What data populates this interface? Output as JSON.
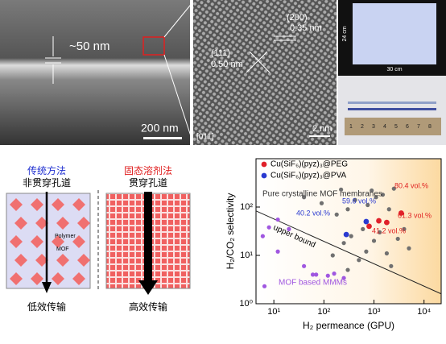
{
  "sem": {
    "thickness": "~50 nm",
    "scale": "200 nm"
  },
  "tem": {
    "plane_a": "(200)",
    "spacing_a": "0.35 nm",
    "plane_b": "(111)",
    "spacing_b": "0.50 nm",
    "zone": "[011]",
    "scale": "2 nm"
  },
  "photo": {
    "height": "24 cm",
    "width": "30 cm",
    "ruler": [
      "1",
      "2",
      "3",
      "4",
      "5",
      "6",
      "7",
      "8"
    ]
  },
  "diagram": {
    "left": {
      "title": "传统方法",
      "subtitle": "非贯穿孔道",
      "polymer": "Polymer",
      "mof": "MOF",
      "result": "低效传输"
    },
    "right": {
      "title": "固态溶剂法",
      "subtitle": "贯穿孔道",
      "result": "高效传输"
    }
  },
  "chart_data": {
    "type": "scatter",
    "x_label": "H₂ permeance (GPU)",
    "y_label": "H₂/CO₂ selectivity",
    "log_x": true,
    "log_y": true,
    "xlim": [
      4.4,
      22000
    ],
    "ylim": [
      1,
      1000
    ],
    "xticks": [
      {
        "value": 10,
        "label": "10¹"
      },
      {
        "value": 100,
        "label": "10²"
      },
      {
        "value": 1000,
        "label": "10³"
      },
      {
        "value": 10000,
        "label": "10⁴"
      }
    ],
    "yticks": [
      {
        "value": 1,
        "label": "10⁰"
      },
      {
        "value": 10,
        "label": "10¹"
      },
      {
        "value": 100,
        "label": "10²"
      }
    ],
    "legend": "upper left",
    "series": [
      {
        "name": "Cu(SiF₆)(pyz)₃@PEG",
        "color": "#e0202a",
        "x": [
          800,
          1250,
          1800,
          3500
        ],
        "values": [
          40,
          52,
          48,
          75
        ]
      },
      {
        "name": "Cu(SiF₆)(pyz)₃@PVA",
        "color": "#2a3ad0",
        "x": [
          280,
          700
        ],
        "values": [
          27,
          50
        ]
      }
    ],
    "reference": [
      {
        "name": "Pure crystalline MOF membranes",
        "color": "#707070",
        "x": [
          40,
          90,
          180,
          220,
          300,
          350,
          420,
          600,
          750,
          900,
          1100,
          1300,
          1500,
          2000,
          2500,
          3000,
          4000,
          5000,
          300,
          500,
          700,
          1000,
          150,
          250,
          2200,
          1800
        ],
        "values": [
          160,
          120,
          70,
          230,
          90,
          25,
          140,
          35,
          110,
          220,
          160,
          30,
          180,
          90,
          240,
          22,
          35,
          14,
          5,
          8,
          12,
          20,
          10,
          18,
          6,
          11
        ]
      },
      {
        "name": "MOF based MMMs",
        "color": "#a057e0",
        "x": [
          6,
          8,
          12,
          20,
          40,
          60,
          70,
          120,
          160,
          250,
          6.5,
          12
        ],
        "values": [
          25,
          38,
          55,
          35,
          6,
          4,
          4,
          3.8,
          4.2,
          3.4,
          2.3,
          12
        ]
      }
    ],
    "upper_bound": {
      "name": "upper bound",
      "color": "#222222",
      "x": [
        4.4,
        22000
      ],
      "values": [
        83,
        1.6
      ]
    },
    "value_annotations": [
      "80.4 vol.%",
      "61.3 vol.%",
      "41.2 vol.%",
      "59.6 vol.%",
      "40.2 vol.%"
    ]
  }
}
